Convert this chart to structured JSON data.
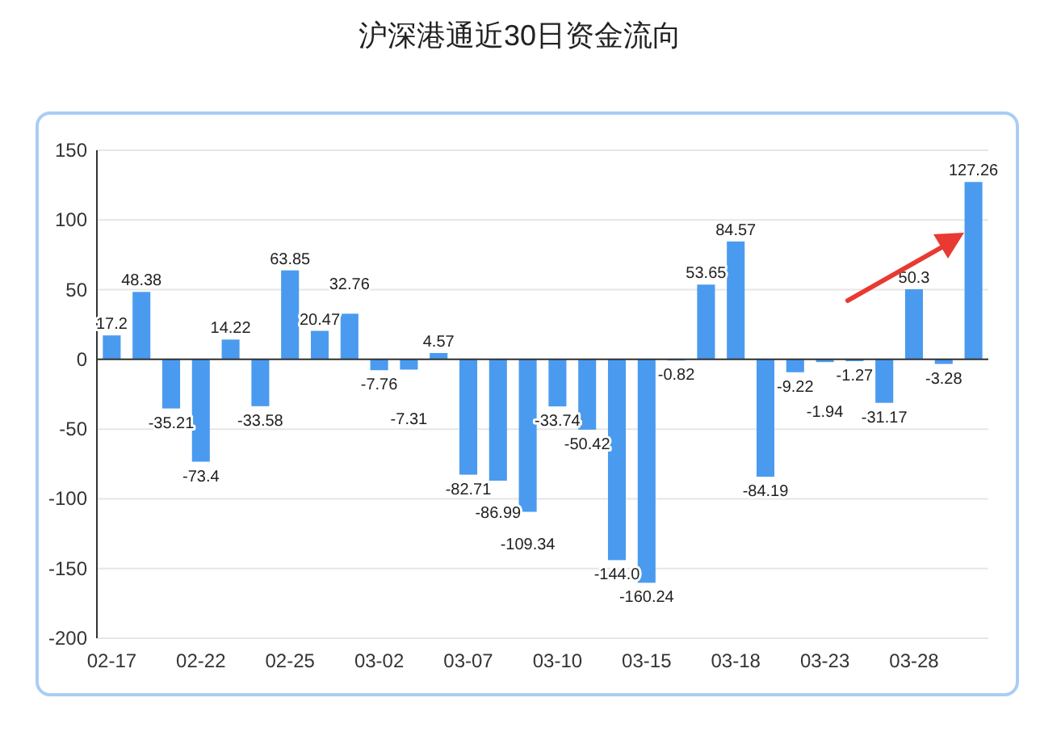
{
  "chart_data": {
    "type": "bar",
    "title": "沪深港通近30日资金流向",
    "categories": [
      "02-17",
      null,
      null,
      "02-22",
      null,
      null,
      "02-25",
      null,
      null,
      "03-02",
      null,
      null,
      "03-07",
      null,
      null,
      "03-10",
      null,
      null,
      "03-15",
      null,
      null,
      "03-18",
      null,
      null,
      "03-23",
      null,
      null,
      "03-28",
      null,
      null
    ],
    "values": [
      17.2,
      48.38,
      -35.21,
      -73.4,
      14.22,
      -33.58,
      63.85,
      20.47,
      32.76,
      -7.76,
      -7.31,
      4.57,
      -82.71,
      -86.99,
      -109.34,
      -33.74,
      -50.42,
      -144.0,
      -160.24,
      -0.82,
      53.65,
      84.57,
      -84.19,
      -9.22,
      -1.94,
      -1.27,
      -31.17,
      50.3,
      -3.28,
      127.26
    ],
    "value_labels": [
      "17.2",
      "48.38",
      "-35.21",
      "-73.4",
      "14.22",
      "-33.58",
      "63.85",
      "20.47",
      "32.76",
      "-7.76",
      "-7.31",
      "4.57",
      "-82.71",
      "-86.99",
      "-109.34",
      "-33.74",
      "-50.42",
      "-144.0",
      "-160.24",
      "-0.82",
      "53.65",
      "84.57",
      "-84.19",
      "-9.22",
      "-1.94",
      "-1.27",
      "-31.17",
      "50.3",
      "-3.28",
      "127.26"
    ],
    "color": "#4a9bef",
    "ylim": [
      -200,
      150
    ],
    "yticks": [
      -200,
      -150,
      -100,
      -50,
      0,
      50,
      100,
      150
    ],
    "grid": "y"
  }
}
